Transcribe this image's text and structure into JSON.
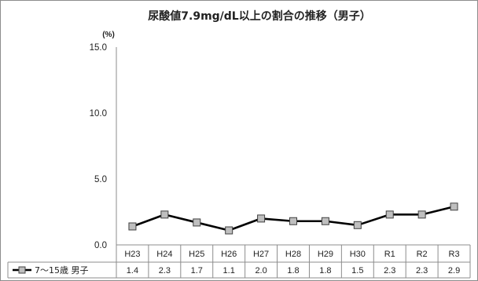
{
  "chart_data": {
    "type": "line",
    "title": "尿酸値7.9mg/dL以上の割合の推移（男子）",
    "ylabel": "(%)",
    "ylim": [
      0,
      15
    ],
    "yticks": [
      "0.0",
      "5.0",
      "10.0",
      "15.0"
    ],
    "grid": false,
    "legend": "table-left",
    "categories": [
      "H23",
      "H24",
      "H25",
      "H26",
      "H27",
      "H28",
      "H29",
      "H30",
      "R1",
      "R2",
      "R3"
    ],
    "series": [
      {
        "name": "7～15歳 男子",
        "values": [
          1.4,
          2.3,
          1.7,
          1.1,
          2.0,
          1.8,
          1.8,
          1.5,
          2.3,
          2.3,
          2.9
        ],
        "labels": [
          "1.4",
          "2.3",
          "1.7",
          "1.1",
          "2.0",
          "1.8",
          "1.8",
          "1.5",
          "2.3",
          "2.3",
          "2.9"
        ]
      }
    ],
    "colors": {
      "line": "#000000",
      "marker_fill": "#bfbfbf",
      "marker_stroke": "#404040"
    }
  }
}
